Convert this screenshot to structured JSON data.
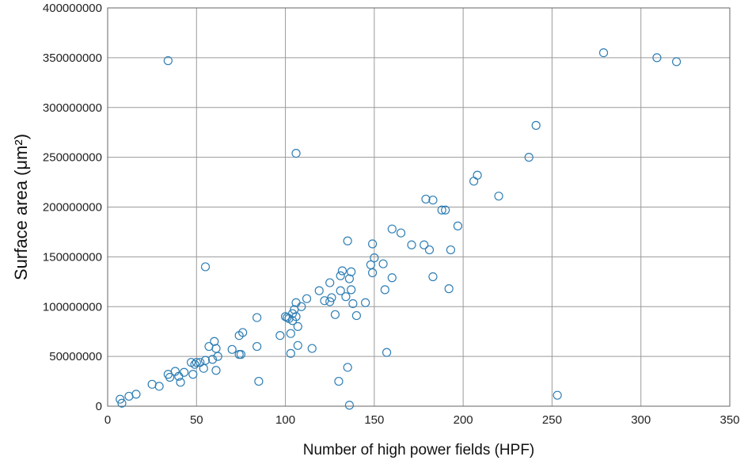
{
  "chart_data": {
    "type": "scatter",
    "title": "",
    "xlabel": "Number of high power fields (HPF)",
    "ylabel": "Surface area (μm²)",
    "xlim": [
      0,
      350
    ],
    "ylim": [
      0,
      400000000
    ],
    "x_ticks": [
      "0",
      "50",
      "100",
      "150",
      "200",
      "250",
      "300",
      "350"
    ],
    "y_ticks": [
      "0",
      "50000000",
      "100000000",
      "150000000",
      "200000000",
      "250000000",
      "300000000",
      "350000000",
      "400000000"
    ],
    "grid": true,
    "marker_color": "#2f7fb5",
    "series": [
      {
        "points": [
          [
            7,
            7000000
          ],
          [
            8,
            3000000
          ],
          [
            12,
            10000000
          ],
          [
            16,
            12000000
          ],
          [
            25,
            22000000
          ],
          [
            29,
            20000000
          ],
          [
            34,
            32000000
          ],
          [
            35,
            29000000
          ],
          [
            38,
            35000000
          ],
          [
            40,
            30000000
          ],
          [
            41,
            24000000
          ],
          [
            43,
            34000000
          ],
          [
            47,
            44000000
          ],
          [
            48,
            32000000
          ],
          [
            49,
            42000000
          ],
          [
            50,
            44000000
          ],
          [
            52,
            44000000
          ],
          [
            54,
            38000000
          ],
          [
            55,
            46000000
          ],
          [
            57,
            60000000
          ],
          [
            59,
            47000000
          ],
          [
            60,
            65000000
          ],
          [
            61,
            58000000
          ],
          [
            61,
            36000000
          ],
          [
            62,
            50000000
          ],
          [
            34,
            347000000
          ],
          [
            55,
            140000000
          ],
          [
            70,
            57000000
          ],
          [
            74,
            52000000
          ],
          [
            74,
            71000000
          ],
          [
            76,
            74000000
          ],
          [
            75,
            52000000
          ],
          [
            84,
            89000000
          ],
          [
            84,
            60000000
          ],
          [
            85,
            25000000
          ],
          [
            97,
            71000000
          ],
          [
            100,
            90000000
          ],
          [
            101,
            89000000
          ],
          [
            102,
            88000000
          ],
          [
            103,
            53000000
          ],
          [
            103,
            73000000
          ],
          [
            104,
            86000000
          ],
          [
            104,
            93000000
          ],
          [
            105,
            97000000
          ],
          [
            106,
            90000000
          ],
          [
            106,
            104000000
          ],
          [
            107,
            61000000
          ],
          [
            107,
            80000000
          ],
          [
            109,
            100000000
          ],
          [
            112,
            108000000
          ],
          [
            115,
            58000000
          ],
          [
            119,
            116000000
          ],
          [
            122,
            106000000
          ],
          [
            125,
            105000000
          ],
          [
            125,
            124000000
          ],
          [
            126,
            109000000
          ],
          [
            128,
            92000000
          ],
          [
            130,
            25000000
          ],
          [
            131,
            116000000
          ],
          [
            131,
            131000000
          ],
          [
            132,
            136000000
          ],
          [
            134,
            110000000
          ],
          [
            135,
            39000000
          ],
          [
            135,
            166000000
          ],
          [
            136,
            128000000
          ],
          [
            136,
            1000000
          ],
          [
            137,
            117000000
          ],
          [
            137,
            135000000
          ],
          [
            138,
            103000000
          ],
          [
            140,
            91000000
          ],
          [
            145,
            104000000
          ],
          [
            148,
            142000000
          ],
          [
            149,
            134000000
          ],
          [
            149,
            163000000
          ],
          [
            150,
            149000000
          ],
          [
            155,
            143000000
          ],
          [
            156,
            117000000
          ],
          [
            157,
            54000000
          ],
          [
            160,
            129000000
          ],
          [
            160,
            178000000
          ],
          [
            165,
            174000000
          ],
          [
            171,
            162000000
          ],
          [
            178,
            162000000
          ],
          [
            179,
            208000000
          ],
          [
            181,
            157000000
          ],
          [
            183,
            207000000
          ],
          [
            183,
            130000000
          ],
          [
            188,
            197000000
          ],
          [
            190,
            197000000
          ],
          [
            192,
            118000000
          ],
          [
            193,
            157000000
          ],
          [
            197,
            181000000
          ],
          [
            106,
            254000000
          ],
          [
            206,
            226000000
          ],
          [
            208,
            232000000
          ],
          [
            220,
            211000000
          ],
          [
            237,
            250000000
          ],
          [
            241,
            282000000
          ],
          [
            253,
            11000000
          ],
          [
            279,
            355000000
          ],
          [
            309,
            350000000
          ],
          [
            320,
            346000000
          ]
        ]
      }
    ]
  }
}
